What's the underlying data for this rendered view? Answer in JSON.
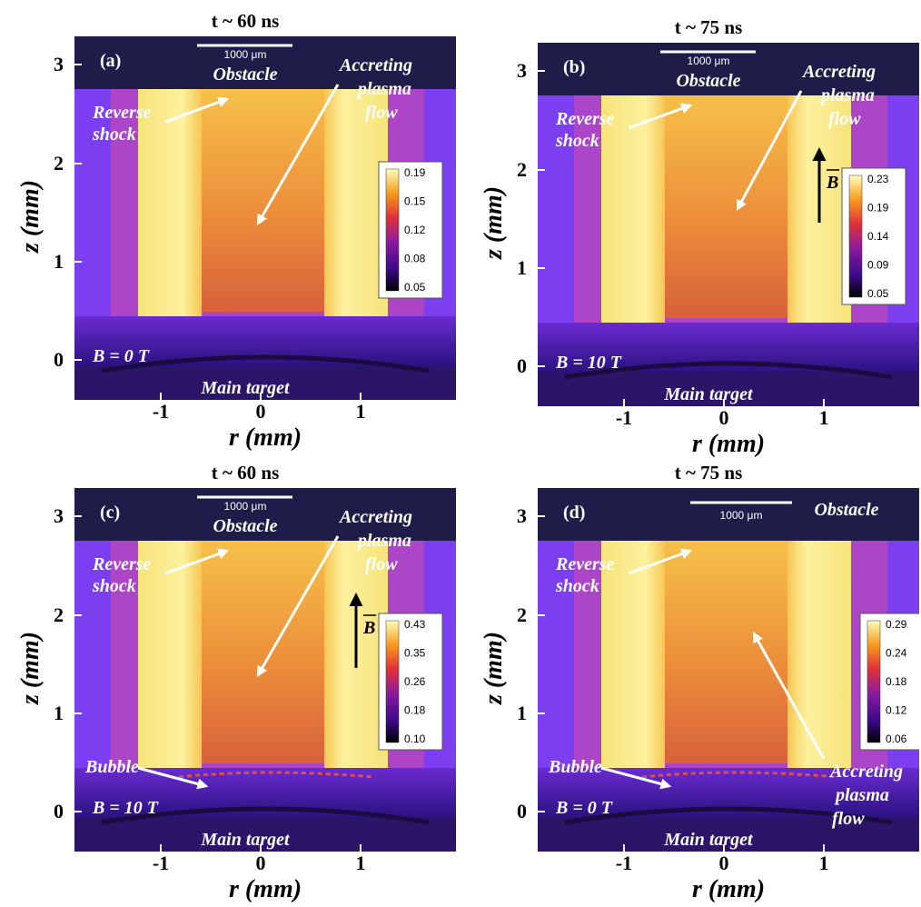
{
  "figure": {
    "xlabel": "r (mm)",
    "ylabel": "z (mm)",
    "scale_bar_label": "1000 μm",
    "b_vector_symbol": "B",
    "panels": [
      {
        "id": "a",
        "letter": "(a)",
        "time": "t ~ 60 ns",
        "field": "B = 0 T",
        "labels": {
          "obstacle": "Obstacle",
          "reverse_1": "Reverse",
          "reverse_2": "shock",
          "accreting_1": "Accreting",
          "accreting_2": "plasma",
          "accreting_3": "flow",
          "bubble": "",
          "main_target": "Main target"
        },
        "show_b_arrow": false,
        "colorbar_ticks": [
          "0.19",
          "0.15",
          "0.12",
          "0.08",
          "0.05"
        ],
        "x_ticks": [
          "-1",
          "0",
          "1"
        ],
        "y_ticks": [
          "3",
          "2",
          "1",
          "0"
        ]
      },
      {
        "id": "b",
        "letter": "(b)",
        "time": "t ~ 75 ns",
        "field": "B = 10 T",
        "labels": {
          "obstacle": "Obstacle",
          "reverse_1": "Reverse",
          "reverse_2": "shock",
          "accreting_1": "Accreting",
          "accreting_2": "plasma",
          "accreting_3": "flow",
          "bubble": "",
          "main_target": "Main target"
        },
        "show_b_arrow": true,
        "colorbar_ticks": [
          "0.23",
          "0.19",
          "0.14",
          "0.09",
          "0.05"
        ],
        "x_ticks": [
          "-1",
          "0",
          "1"
        ],
        "y_ticks": [
          "3",
          "2",
          "1",
          "0"
        ]
      },
      {
        "id": "c",
        "letter": "(c)",
        "time": "t ~ 60 ns",
        "field": "B = 10 T",
        "labels": {
          "obstacle": "Obstacle",
          "reverse_1": "Reverse",
          "reverse_2": "shock",
          "accreting_1": "Accreting",
          "accreting_2": "plasma",
          "accreting_3": "flow",
          "bubble": "Bubble",
          "main_target": "Main target"
        },
        "show_b_arrow": true,
        "colorbar_ticks": [
          "0.43",
          "0.35",
          "0.26",
          "0.18",
          "0.10"
        ],
        "x_ticks": [
          "-1",
          "0",
          "1"
        ],
        "y_ticks": [
          "3",
          "2",
          "1",
          "0"
        ]
      },
      {
        "id": "d",
        "letter": "(d)",
        "time": "t ~ 75 ns",
        "field": "B = 0 T",
        "labels": {
          "obstacle": "Obstacle",
          "reverse_1": "Reverse",
          "reverse_2": "shock",
          "accreting_1": "Accreting",
          "accreting_2": "plasma",
          "accreting_3": "flow",
          "bubble": "Bubble",
          "main_target": "Main target"
        },
        "show_b_arrow": false,
        "colorbar_ticks": [
          "0.29",
          "0.24",
          "0.18",
          "0.12",
          "0.06"
        ],
        "x_ticks": [
          "-1",
          "0",
          "1"
        ],
        "y_ticks": [
          "3",
          "2",
          "1",
          "0"
        ]
      }
    ]
  }
}
